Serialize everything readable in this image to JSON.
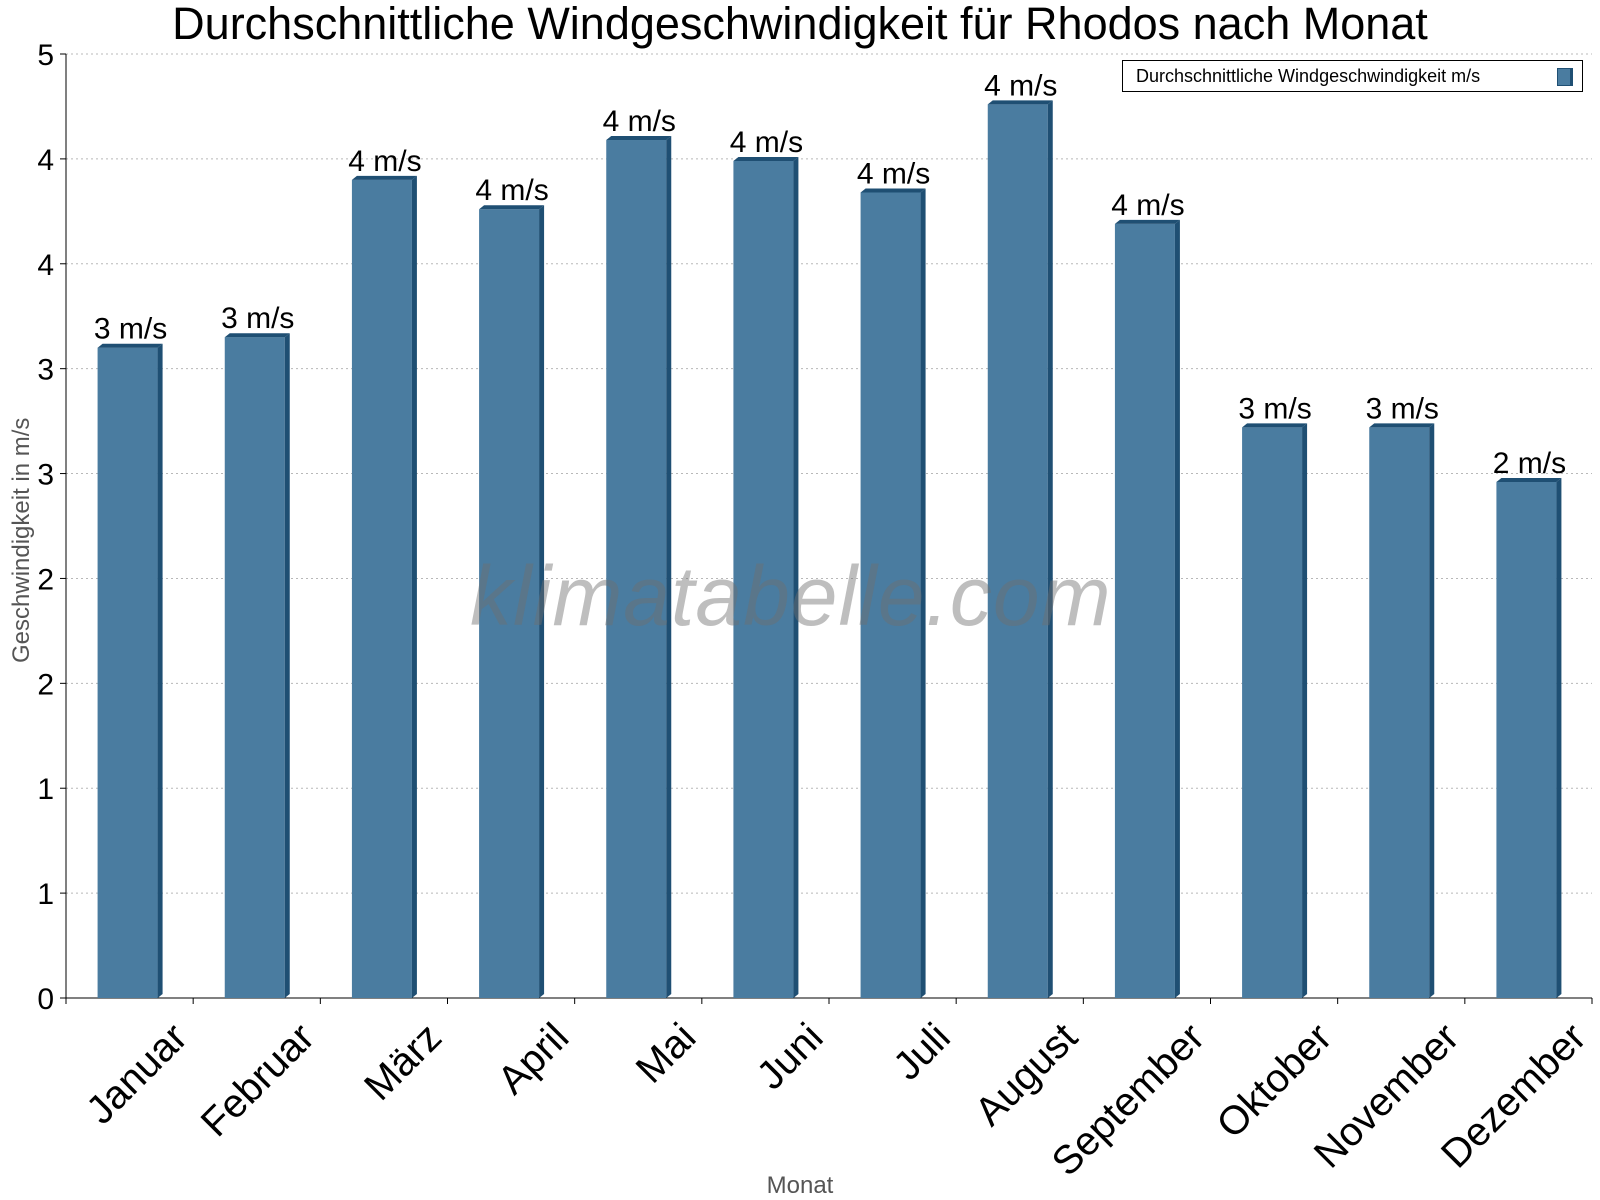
{
  "chart_data": {
    "type": "bar",
    "title": "Durchschnittliche Windgeschwindigkeit für Rhodos nach Monat",
    "xlabel": "Monat",
    "ylabel": "Geschwindigkeit in m/s",
    "categories": [
      "Januar",
      "Februar",
      "März",
      "April",
      "Mai",
      "Juni",
      "Juli",
      "August",
      "September",
      "Oktober",
      "November",
      "Dezember"
    ],
    "series": [
      {
        "name": "Durchschnittliche Windgeschwindigkeit m/s",
        "values": [
          3.1,
          3.15,
          3.9,
          3.76,
          4.09,
          3.99,
          3.84,
          4.26,
          3.69,
          2.72,
          2.72,
          2.46
        ],
        "data_labels": [
          "3 m/s",
          "3 m/s",
          "4 m/s",
          "4 m/s",
          "4 m/s",
          "4 m/s",
          "4 m/s",
          "4 m/s",
          "4 m/s",
          "3 m/s",
          "3 m/s",
          "2 m/s"
        ]
      }
    ],
    "ylim": [
      0,
      4.5
    ],
    "y_tick_values": [
      0,
      0.5,
      1,
      1.5,
      2,
      2.5,
      3,
      3.5,
      4,
      4.5
    ],
    "y_tick_labels": [
      "0",
      "1",
      "1",
      "2",
      "2",
      "3",
      "3",
      "4",
      "4",
      "5"
    ],
    "grid": true,
    "legend_position": "top-right",
    "watermark": "klimatabelle.com",
    "colors": {
      "bar": "#4a7ca0",
      "bar_side": "#1f4f73"
    }
  }
}
